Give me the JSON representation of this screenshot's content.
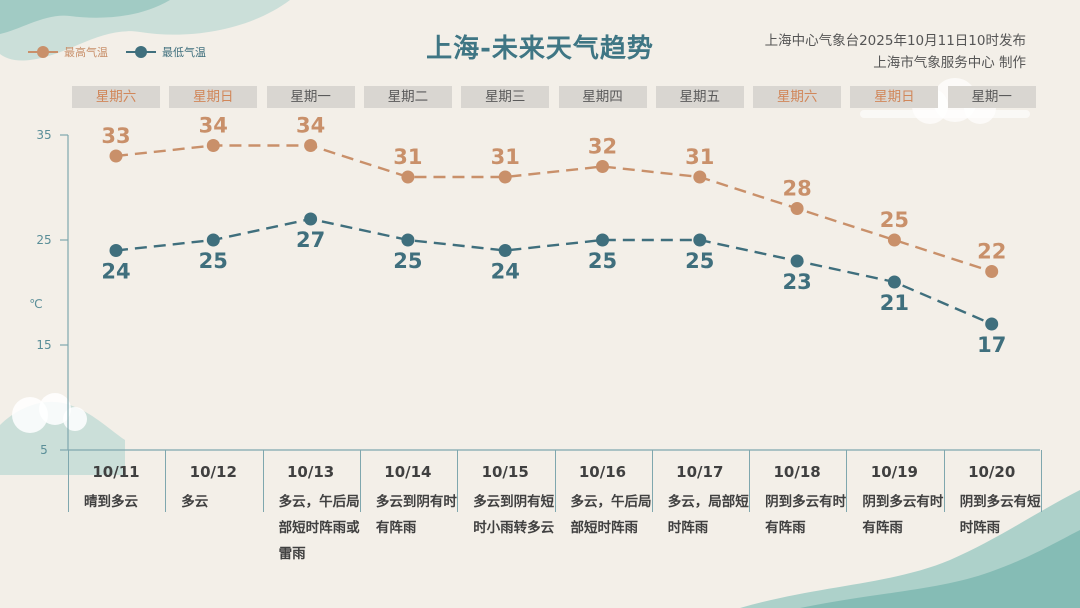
{
  "title": "上海-未来天气趋势",
  "source": {
    "line1": "上海中心气象台2025年10月11日10时发布",
    "line2": "上海市气象服务中心 制作"
  },
  "legend": {
    "high_label": "最高气温",
    "low_label": "最低气温"
  },
  "colors": {
    "high": "#c9906a",
    "low": "#3f6f7d",
    "axis": "#7fa7ae",
    "weekend": "#d1875a",
    "weekday": "#5a5a5a"
  },
  "y_unit": "℃",
  "days": [
    {
      "weekday": "星期六",
      "date": "10/11",
      "weather": "晴到多云",
      "weekend": true
    },
    {
      "weekday": "星期日",
      "date": "10/12",
      "weather": "多云",
      "weekend": true
    },
    {
      "weekday": "星期一",
      "date": "10/13",
      "weather": "多云，午后局部短时阵雨或雷雨",
      "weekend": false
    },
    {
      "weekday": "星期二",
      "date": "10/14",
      "weather": "多云到阴有时有阵雨",
      "weekend": false
    },
    {
      "weekday": "星期三",
      "date": "10/15",
      "weather": "多云到阴有短时小雨转多云",
      "weekend": false
    },
    {
      "weekday": "星期四",
      "date": "10/16",
      "weather": "多云，午后局部短时阵雨",
      "weekend": false
    },
    {
      "weekday": "星期五",
      "date": "10/17",
      "weather": "多云，局部短时阵雨",
      "weekend": false
    },
    {
      "weekday": "星期六",
      "date": "10/18",
      "weather": "阴到多云有时有阵雨",
      "weekend": true
    },
    {
      "weekday": "星期日",
      "date": "10/19",
      "weather": "阴到多云有时有阵雨",
      "weekend": true
    },
    {
      "weekday": "星期一",
      "date": "10/20",
      "weather": "阴到多云有短时阵雨",
      "weekend": false
    }
  ],
  "chart_data": {
    "type": "line",
    "title": "上海-未来天气趋势",
    "ylabel": "℃",
    "ylim": [
      5,
      35
    ],
    "yticks": [
      5,
      15,
      25,
      35
    ],
    "grid": false,
    "legend_position": "top-left",
    "categories": [
      "10/11",
      "10/12",
      "10/13",
      "10/14",
      "10/15",
      "10/16",
      "10/17",
      "10/18",
      "10/19",
      "10/20"
    ],
    "series": [
      {
        "name": "最高气温",
        "values": [
          33,
          34,
          34,
          31,
          31,
          32,
          31,
          28,
          25,
          22
        ]
      },
      {
        "name": "最低气温",
        "values": [
          24,
          25,
          27,
          25,
          24,
          25,
          25,
          23,
          21,
          17
        ]
      }
    ]
  }
}
